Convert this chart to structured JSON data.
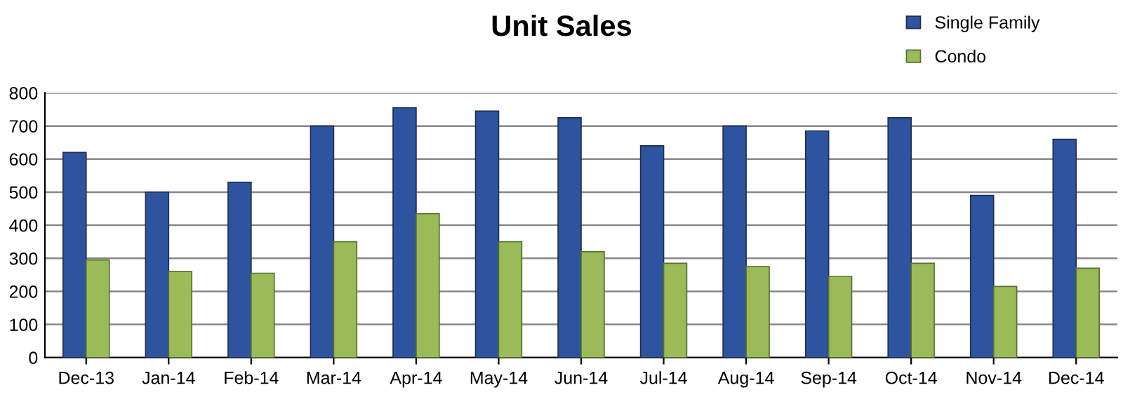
{
  "chart_data": {
    "type": "bar",
    "title": "Unit Sales",
    "categories": [
      "Dec-13",
      "Jan-14",
      "Feb-14",
      "Mar-14",
      "Apr-14",
      "May-14",
      "Jun-14",
      "Jul-14",
      "Aug-14",
      "Sep-14",
      "Oct-14",
      "Nov-14",
      "Dec-14"
    ],
    "series": [
      {
        "name": "Single Family",
        "color": "#2e54a0",
        "values": [
          620,
          500,
          530,
          700,
          755,
          745,
          725,
          640,
          700,
          685,
          725,
          490,
          660
        ]
      },
      {
        "name": "Condo",
        "color": "#9bbb59",
        "values": [
          295,
          260,
          255,
          350,
          435,
          350,
          320,
          285,
          275,
          245,
          285,
          215,
          270
        ]
      }
    ],
    "ylim": [
      0,
      800
    ],
    "yticks": [
      0,
      100,
      200,
      300,
      400,
      500,
      600,
      700,
      800
    ],
    "grid": "y",
    "legend": "top right"
  }
}
